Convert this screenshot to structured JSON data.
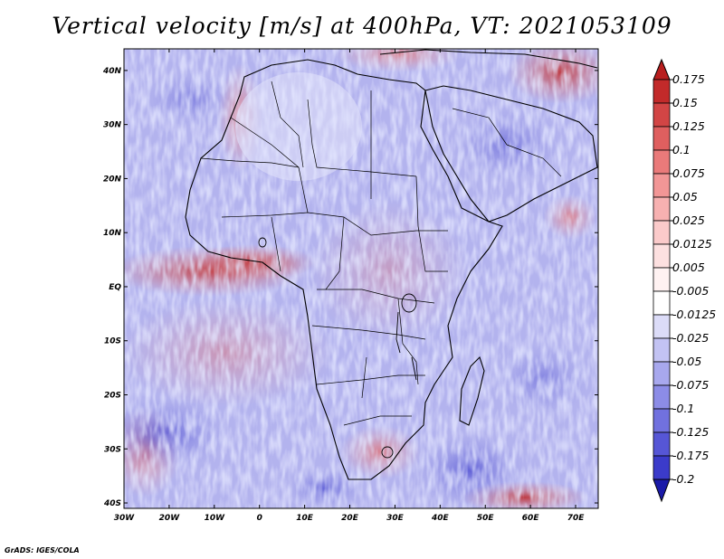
{
  "title": "Vertical velocity [m/s] at 400hPa, VT: 2021053109",
  "credit": "GrADS: IGES/COLA",
  "map": {
    "lon_ticks": [
      "30W",
      "20W",
      "10W",
      "0",
      "10E",
      "20E",
      "30E",
      "40E",
      "50E",
      "60E",
      "70E"
    ],
    "lat_ticks": [
      "40N",
      "30N",
      "20N",
      "10N",
      "EQ",
      "10S",
      "20S",
      "30S",
      "40S"
    ]
  },
  "colorbar": {
    "levels": [
      {
        "label": "0.175",
        "color": "#c22a2a"
      },
      {
        "label": "0.15",
        "color": "#d24545"
      },
      {
        "label": "0.125",
        "color": "#df5f5f"
      },
      {
        "label": "0.1",
        "color": "#ea7a7a"
      },
      {
        "label": "0.075",
        "color": "#f29696"
      },
      {
        "label": "0.05",
        "color": "#f7b1b1"
      },
      {
        "label": "0.025",
        "color": "#fbcaca"
      },
      {
        "label": "0.0125",
        "color": "#fde0e0"
      },
      {
        "label": "0.005",
        "color": "#fff2f2"
      },
      {
        "label": "-0.005",
        "color": "#ffffff"
      },
      {
        "label": "-0.0125",
        "color": "#dcdcf8"
      },
      {
        "label": "-0.025",
        "color": "#c3c3f3"
      },
      {
        "label": "-0.05",
        "color": "#a8a8ee"
      },
      {
        "label": "-0.075",
        "color": "#8c8ce7"
      },
      {
        "label": "-0.1",
        "color": "#7171df"
      },
      {
        "label": "-0.125",
        "color": "#5656d6"
      },
      {
        "label": "-0.175",
        "color": "#3b3bca"
      },
      {
        "label": "-0.2",
        "color": "#2525b8"
      }
    ],
    "top_arrow_color": "#b81e1e",
    "bottom_arrow_color": "#1a1aa8"
  }
}
